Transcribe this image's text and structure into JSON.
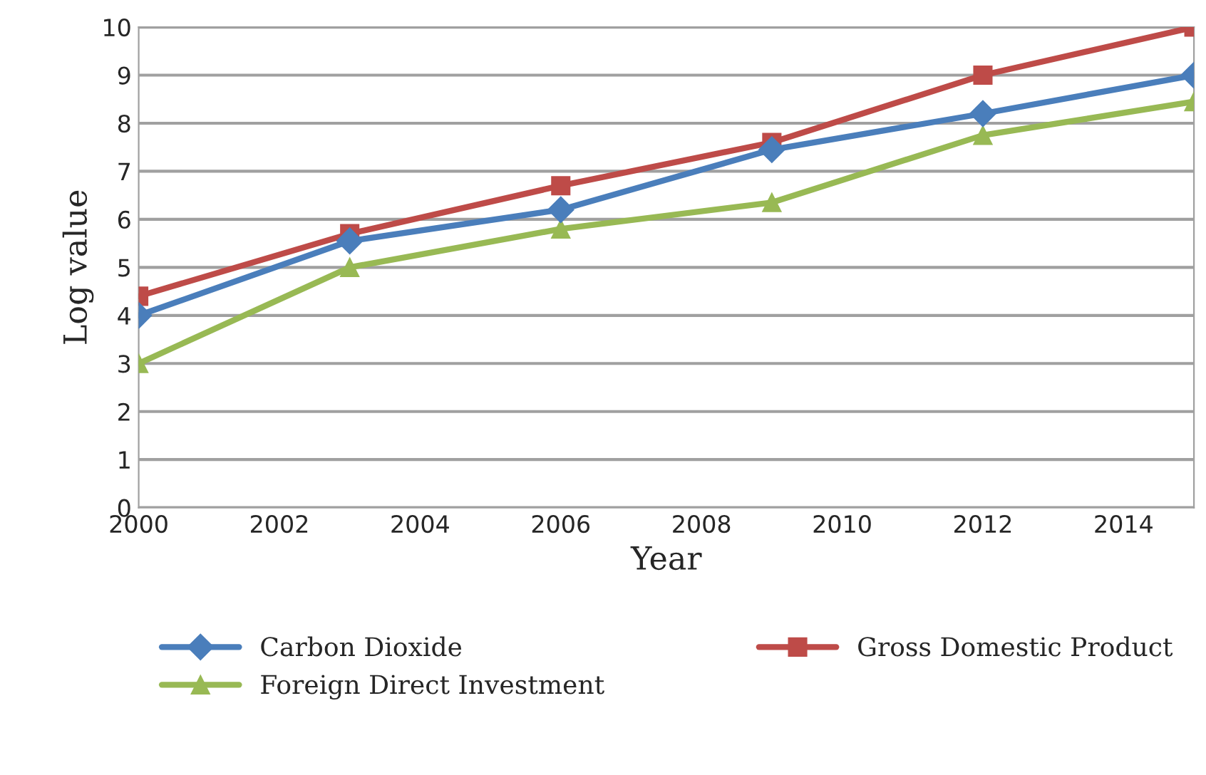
{
  "chart_data": {
    "type": "line",
    "xlabel": "Year",
    "ylabel": "Log value",
    "x": [
      2000,
      2003,
      2006,
      2009,
      2012,
      2015
    ],
    "series": [
      {
        "name": "Carbon Dioxide",
        "color": "#4a7ebb",
        "marker": "diamond",
        "values": [
          4.0,
          5.55,
          6.2,
          7.45,
          8.2,
          9.0
        ]
      },
      {
        "name": "Gross Domestic Product",
        "color": "#be4b48",
        "marker": "square",
        "values": [
          4.4,
          5.7,
          6.7,
          7.6,
          9.0,
          10.0
        ]
      },
      {
        "name": "Foreign Direct Investment",
        "color": "#98b954",
        "marker": "triangle",
        "values": [
          3.0,
          5.0,
          5.8,
          6.35,
          7.75,
          8.45
        ]
      }
    ],
    "xlim": [
      2000,
      2015
    ],
    "xticks": [
      2000,
      2002,
      2004,
      2006,
      2008,
      2010,
      2012,
      2014
    ],
    "ylim": [
      0,
      10
    ],
    "yticks": [
      0,
      1,
      2,
      3,
      4,
      5,
      6,
      7,
      8,
      9,
      10
    ],
    "grid": "y",
    "legend": "bottom",
    "line_style": "solid"
  }
}
